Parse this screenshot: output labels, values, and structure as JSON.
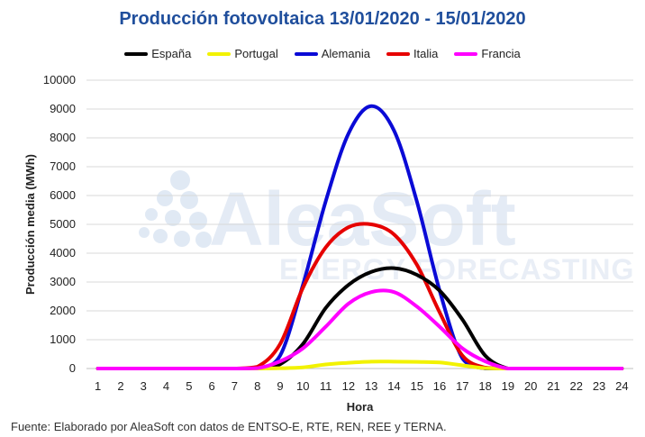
{
  "footer": {
    "source": "Fuente: Elaborado por AleaSoft con datos de ENTSO-E, RTE, REN, REE y TERNA."
  },
  "watermark": {
    "brand": "AleaSoft",
    "tagline": "ENERGY FORECASTING"
  },
  "chart_data": {
    "type": "line",
    "title": "Producción fotovoltaica 13/01/2020 - 15/01/2020",
    "xlabel": "Hora",
    "ylabel": "Producción media (MWh)",
    "ylim": [
      0,
      10000
    ],
    "yticks": [
      0,
      1000,
      2000,
      3000,
      4000,
      5000,
      6000,
      7000,
      8000,
      9000,
      10000
    ],
    "grid": true,
    "legend_position": "top",
    "x": [
      1,
      2,
      3,
      4,
      5,
      6,
      7,
      8,
      9,
      10,
      11,
      12,
      13,
      14,
      15,
      16,
      17,
      18,
      19,
      20,
      21,
      22,
      23,
      24
    ],
    "series": [
      {
        "name": "España",
        "color": "#000000",
        "values": [
          0,
          0,
          0,
          0,
          0,
          0,
          0,
          0,
          150,
          850,
          2100,
          2900,
          3350,
          3480,
          3250,
          2700,
          1700,
          450,
          0,
          0,
          0,
          0,
          0,
          0
        ]
      },
      {
        "name": "Portugal",
        "color": "#f2f200",
        "values": [
          0,
          0,
          0,
          0,
          0,
          0,
          0,
          0,
          10,
          40,
          140,
          200,
          240,
          240,
          230,
          210,
          110,
          10,
          0,
          0,
          0,
          0,
          0,
          0
        ]
      },
      {
        "name": "Alemania",
        "color": "#0a0ad6",
        "values": [
          0,
          0,
          0,
          0,
          0,
          0,
          0,
          0,
          450,
          2900,
          5800,
          8150,
          9100,
          8250,
          5800,
          2700,
          350,
          0,
          0,
          0,
          0,
          0,
          0,
          0
        ]
      },
      {
        "name": "Italia",
        "color": "#e60000",
        "values": [
          0,
          0,
          0,
          0,
          0,
          0,
          0,
          60,
          850,
          2800,
          4200,
          4900,
          5000,
          4650,
          3600,
          1950,
          450,
          30,
          0,
          0,
          0,
          0,
          0,
          0
        ]
      },
      {
        "name": "Francia",
        "color": "#ff00ff",
        "values": [
          0,
          0,
          0,
          0,
          0,
          0,
          0,
          10,
          250,
          700,
          1450,
          2250,
          2650,
          2650,
          2150,
          1450,
          700,
          250,
          0,
          0,
          0,
          0,
          0,
          0
        ]
      }
    ]
  }
}
